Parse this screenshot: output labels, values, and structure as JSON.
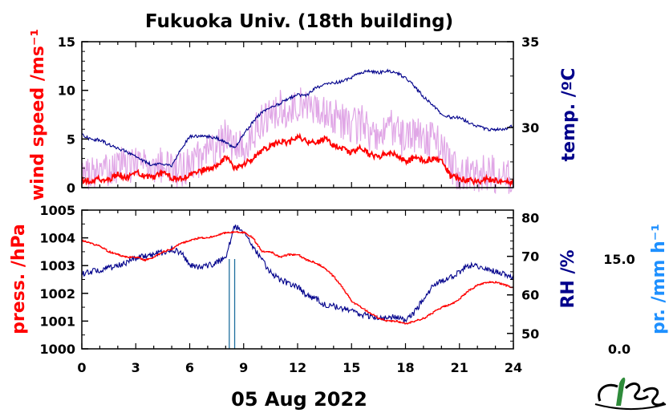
{
  "chart_data": [
    {
      "type": "line",
      "title": "Fukuoka Univ. (18th building)",
      "ylabel_left": "wind speed /ms⁻¹",
      "ylabel_right": "temp. /ºC",
      "left_ticks": [
        "0",
        "5",
        "10",
        "15"
      ],
      "right_ticks": [
        "30",
        "35"
      ],
      "ylim_left": [
        0,
        15
      ],
      "ylim_right": [
        26.5,
        35
      ],
      "series": [
        {
          "name": "wind speed",
          "axis": "left",
          "color": "#ff0000",
          "x": [
            0,
            0.5,
            1,
            1.5,
            2,
            2.5,
            3,
            3.5,
            4,
            4.5,
            5,
            5.5,
            6,
            6.5,
            7,
            7.5,
            8,
            8.5,
            9,
            9.5,
            10,
            10.5,
            11,
            11.5,
            12,
            12.5,
            13,
            13.5,
            14,
            14.5,
            15,
            15.5,
            16,
            16.5,
            17,
            17.5,
            18,
            18.5,
            19,
            19.5,
            20,
            20.5,
            21,
            21.5,
            22,
            22.5,
            23,
            23.5,
            24
          ],
          "y": [
            0.8,
            0.7,
            0.9,
            0.8,
            1.4,
            1.0,
            1.6,
            1.2,
            1.1,
            1.5,
            1.0,
            0.9,
            1.3,
            1.6,
            2.0,
            2.2,
            3.2,
            2.0,
            2.4,
            3.0,
            3.8,
            4.2,
            4.8,
            4.6,
            5.2,
            4.8,
            4.5,
            5.0,
            4.4,
            4.0,
            3.6,
            4.2,
            3.4,
            3.2,
            3.6,
            3.4,
            2.6,
            3.1,
            2.8,
            2.9,
            2.8,
            1.2,
            0.9,
            0.8,
            0.6,
            0.9,
            0.7,
            0.5,
            0.6
          ]
        },
        {
          "name": "wind gust",
          "axis": "left",
          "color": "#e0a6e6",
          "x": [
            0,
            0.5,
            1,
            1.5,
            2,
            2.5,
            3,
            3.5,
            4,
            4.5,
            5,
            5.5,
            6,
            6.5,
            7,
            7.5,
            8,
            8.5,
            9,
            9.5,
            10,
            10.5,
            11,
            11.5,
            12,
            12.5,
            13,
            13.5,
            14,
            14.5,
            15,
            15.5,
            16,
            16.5,
            17,
            17.5,
            18,
            18.5,
            19,
            19.5,
            20,
            20.5,
            21,
            21.5,
            22,
            22.5,
            23,
            23.5,
            24
          ],
          "y": [
            1.6,
            1.4,
            1.8,
            1.6,
            2.6,
            2.0,
            2.9,
            2.2,
            2.0,
            2.6,
            1.9,
            1.7,
            2.4,
            2.9,
            3.6,
            4.0,
            5.8,
            3.6,
            4.4,
            5.6,
            7.0,
            7.4,
            8.2,
            7.6,
            8.6,
            7.8,
            7.4,
            8.0,
            7.2,
            6.8,
            6.0,
            6.8,
            5.8,
            5.6,
            6.2,
            5.8,
            4.6,
            5.4,
            4.8,
            5.0,
            4.8,
            2.2,
            1.6,
            1.4,
            1.2,
            1.6,
            1.3,
            1.0,
            1.1
          ]
        },
        {
          "name": "temperature",
          "axis": "right",
          "color": "#00008b",
          "x": [
            0,
            0.5,
            1,
            1.5,
            2,
            2.5,
            3,
            3.5,
            4,
            4.5,
            5,
            5.5,
            6,
            6.5,
            7,
            7.5,
            8,
            8.5,
            9,
            9.5,
            10,
            10.5,
            11,
            11.5,
            12,
            12.5,
            13,
            13.5,
            14,
            14.5,
            15,
            15.5,
            16,
            16.5,
            17,
            17.5,
            18,
            18.5,
            19,
            19.5,
            20,
            20.5,
            21,
            21.5,
            22,
            22.5,
            23,
            23.5,
            24
          ],
          "y": [
            29.6,
            29.3,
            29.3,
            29.0,
            28.8,
            28.6,
            28.3,
            28.0,
            27.8,
            27.9,
            27.8,
            28.7,
            29.5,
            29.5,
            29.5,
            29.4,
            29.1,
            28.8,
            29.6,
            30.3,
            30.9,
            31.2,
            31.4,
            31.7,
            31.9,
            31.9,
            32.3,
            32.5,
            32.6,
            32.7,
            32.9,
            33.2,
            33.3,
            33.2,
            33.3,
            33.2,
            32.9,
            32.4,
            31.8,
            31.3,
            30.8,
            30.6,
            30.6,
            30.3,
            30.1,
            29.9,
            29.9,
            29.9,
            30.1
          ]
        }
      ]
    },
    {
      "type": "line",
      "ylabel_left": "press. /hPa",
      "ylabel_right": "RH /%",
      "ylabel_far_right": "pr. /mm h⁻¹",
      "left_ticks": [
        "1000",
        "1001",
        "1002",
        "1003",
        "1004",
        "1005"
      ],
      "right_ticks": [
        "50",
        "60",
        "70",
        "80"
      ],
      "far_right_ticks": [
        "0.0",
        "15.0"
      ],
      "ylim_left": [
        1000,
        1005
      ],
      "ylim_right": [
        46,
        82
      ],
      "xlabel": "05 Aug 2022",
      "x_ticks": [
        "0",
        "3",
        "6",
        "9",
        "12",
        "15",
        "18",
        "21",
        "24"
      ],
      "xlim": [
        0,
        24
      ],
      "series": [
        {
          "name": "pressure",
          "axis": "left",
          "color": "#ff0000",
          "x": [
            0,
            0.5,
            1,
            1.5,
            2,
            2.5,
            3,
            3.5,
            4,
            4.5,
            5,
            5.5,
            6,
            6.5,
            7,
            7.5,
            8,
            8.5,
            9,
            9.5,
            10,
            10.5,
            11,
            11.5,
            12,
            12.5,
            13,
            13.5,
            14,
            14.5,
            15,
            15.5,
            16,
            16.5,
            17,
            17.5,
            18,
            18.5,
            19,
            19.5,
            20,
            20.5,
            21,
            21.5,
            22,
            22.5,
            23,
            23.5,
            24
          ],
          "y": [
            1003.9,
            1003.8,
            1003.7,
            1003.5,
            1003.4,
            1003.3,
            1003.3,
            1003.2,
            1003.3,
            1003.5,
            1003.6,
            1003.8,
            1003.9,
            1004.0,
            1004.0,
            1004.1,
            1004.2,
            1004.2,
            1004.2,
            1004.0,
            1003.5,
            1003.5,
            1003.3,
            1003.4,
            1003.4,
            1003.2,
            1003.1,
            1002.9,
            1002.6,
            1002.2,
            1001.7,
            1001.5,
            1001.3,
            1001.1,
            1001.0,
            1001.0,
            1000.9,
            1001.0,
            1001.1,
            1001.3,
            1001.5,
            1001.6,
            1001.8,
            1002.1,
            1002.3,
            1002.4,
            1002.4,
            1002.3,
            1002.2
          ]
        },
        {
          "name": "relative humidity",
          "axis": "right",
          "color": "#00008b",
          "x": [
            0,
            0.5,
            1,
            1.5,
            2,
            2.5,
            3,
            3.5,
            4,
            4.5,
            5,
            5.5,
            6,
            6.5,
            7,
            7.5,
            8,
            8.5,
            9,
            9.5,
            10,
            10.5,
            11,
            11.5,
            12,
            12.5,
            13,
            13.5,
            14,
            14.5,
            15,
            15.5,
            16,
            16.5,
            17,
            17.5,
            18,
            18.5,
            19,
            19.5,
            20,
            20.5,
            21,
            21.5,
            22,
            22.5,
            23,
            23.5,
            24
          ],
          "y": [
            65.5,
            66.0,
            66.5,
            67.0,
            67.5,
            68.5,
            69.5,
            70.0,
            70.5,
            71.0,
            72.0,
            71.0,
            68.0,
            67.0,
            67.5,
            68.5,
            69.5,
            78.0,
            76.0,
            72.5,
            69.0,
            66.0,
            64.0,
            63.0,
            62.0,
            60.0,
            59.0,
            57.5,
            57.0,
            56.5,
            56.0,
            55.0,
            54.5,
            54.0,
            54.0,
            54.5,
            53.0,
            55.5,
            59.0,
            62.0,
            63.5,
            64.5,
            66.0,
            67.5,
            67.5,
            67.0,
            66.0,
            65.5,
            64.0
          ]
        },
        {
          "name": "precipitation",
          "axis": "far_right",
          "color": "#1f6f9f",
          "x": [
            8.2,
            8.5
          ],
          "y": [
            15.0,
            15.0
          ]
        }
      ]
    }
  ]
}
